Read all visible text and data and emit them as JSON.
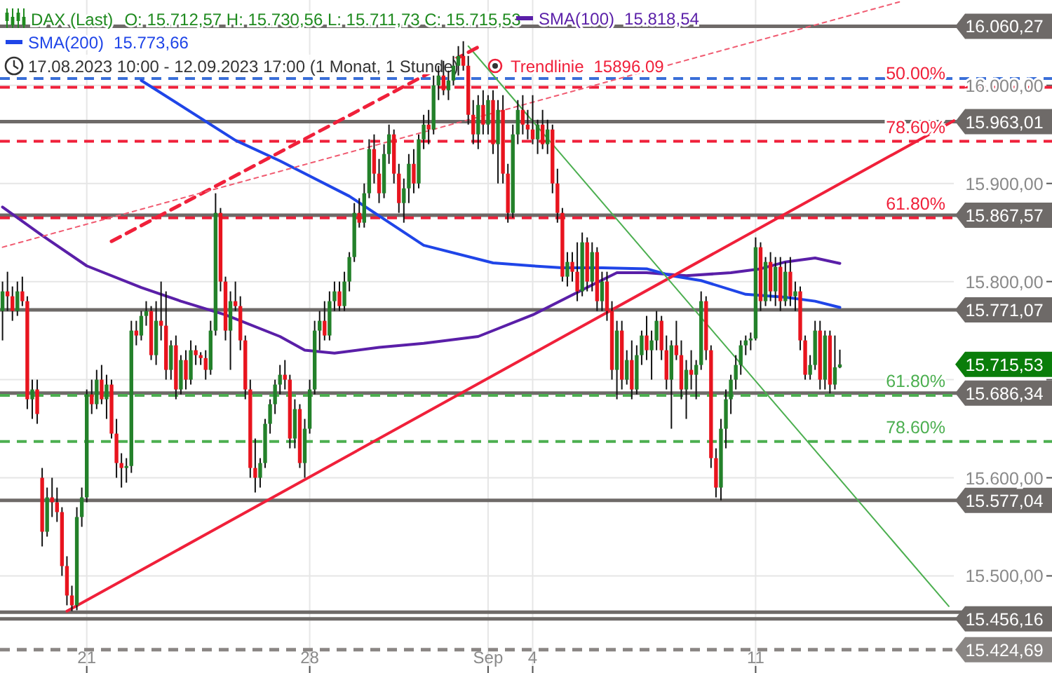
{
  "chart_data": {
    "type": "candlestick",
    "title": "DAX (Last)",
    "subtitle": "17.08.2023 10:00 - 12.09.2023 17:00  (1 Monat, 1 Stunde)",
    "categories": [
      null,
      null,
      null,
      null,
      null,
      null,
      null,
      null,
      null,
      null,
      null,
      null,
      null,
      null,
      null,
      null,
      null,
      "21",
      null,
      null,
      null,
      null,
      null,
      null,
      null,
      null,
      null,
      null,
      null,
      null,
      null,
      null,
      null,
      null,
      null,
      null,
      null,
      null,
      null,
      null,
      null,
      null,
      null,
      null,
      null,
      null,
      null,
      null,
      null,
      null,
      null,
      null,
      null,
      null,
      null,
      null,
      null,
      null,
      null,
      null,
      null,
      null,
      "28",
      null,
      null,
      null,
      null,
      null,
      null,
      null,
      null,
      null,
      null,
      null,
      null,
      null,
      null,
      null,
      null,
      null,
      null,
      null,
      null,
      null,
      null,
      null,
      null,
      null,
      null,
      null,
      null,
      null,
      null,
      null,
      null,
      null,
      null,
      null,
      "Sep",
      null,
      null,
      null,
      null,
      null,
      null,
      null,
      null,
      "4",
      null,
      null,
      null,
      null,
      null,
      null,
      null,
      null,
      null,
      null,
      null,
      null,
      null,
      null,
      null,
      null,
      null,
      null,
      null,
      null,
      null,
      null,
      null,
      null,
      null,
      null,
      null,
      null,
      null,
      null,
      null,
      null,
      null,
      null,
      null,
      null,
      null,
      null,
      null,
      null,
      null,
      null,
      null,
      null,
      "11",
      null,
      null,
      null,
      null,
      null,
      null,
      null,
      null,
      null,
      null,
      null,
      null,
      null,
      null,
      null,
      null,
      null,
      null,
      null,
      null,
      null,
      null,
      null,
      null,
      null,
      null,
      null,
      null,
      null,
      null,
      null,
      null,
      null,
      null,
      null,
      null,
      null,
      null,
      null,
      null
    ],
    "ohlc": [
      [
        15770,
        15800,
        15740,
        15790
      ],
      [
        15790,
        15810,
        15770,
        15785
      ],
      [
        15785,
        15795,
        15760,
        15770
      ],
      [
        15770,
        15800,
        15765,
        15790
      ],
      [
        15790,
        15805,
        15775,
        15780
      ],
      [
        15780,
        15785,
        15670,
        15680
      ],
      [
        15680,
        15700,
        15660,
        15690
      ],
      [
        15690,
        15700,
        15655,
        15665
      ],
      [
        15600,
        15610,
        15530,
        15545
      ],
      [
        15545,
        15590,
        15540,
        15580
      ],
      [
        15580,
        15600,
        15560,
        15575
      ],
      [
        15575,
        15590,
        15555,
        15565
      ],
      [
        15565,
        15570,
        15500,
        15510
      ],
      [
        15510,
        15520,
        15470,
        15480
      ],
      [
        15480,
        15490,
        15464,
        15470
      ],
      [
        15470,
        15570,
        15465,
        15560
      ],
      [
        15560,
        15590,
        15550,
        15580
      ],
      [
        15580,
        15690,
        15575,
        15685
      ],
      [
        15685,
        15700,
        15665,
        15675
      ],
      [
        15675,
        15710,
        15670,
        15700
      ],
      [
        15700,
        15715,
        15675,
        15680
      ],
      [
        15680,
        15705,
        15660,
        15695
      ],
      [
        15695,
        15700,
        15640,
        15645
      ],
      [
        15645,
        15660,
        15600,
        15615
      ],
      [
        15615,
        15625,
        15590,
        15610
      ],
      [
        15610,
        15620,
        15595,
        15612
      ],
      [
        15612,
        15760,
        15605,
        15750
      ],
      [
        15750,
        15760,
        15735,
        15745
      ],
      [
        15745,
        15770,
        15740,
        15765
      ],
      [
        15765,
        15780,
        15755,
        15770
      ],
      [
        15770,
        15775,
        15720,
        15725
      ],
      [
        15725,
        15780,
        15715,
        15760
      ],
      [
        15760,
        15800,
        15740,
        15755
      ],
      [
        15755,
        15790,
        15700,
        15710
      ],
      [
        15710,
        15740,
        15700,
        15735
      ],
      [
        15735,
        15745,
        15680,
        15690
      ],
      [
        15690,
        15725,
        15685,
        15720
      ],
      [
        15720,
        15730,
        15690,
        15700
      ],
      [
        15700,
        15740,
        15695,
        15730
      ],
      [
        15730,
        15735,
        15715,
        15725
      ],
      [
        15725,
        15728,
        15715,
        15722
      ],
      [
        15722,
        15730,
        15700,
        15710
      ],
      [
        15710,
        15760,
        15705,
        15750
      ],
      [
        15750,
        15890,
        15745,
        15870
      ],
      [
        15870,
        15875,
        15790,
        15800
      ],
      [
        15800,
        15805,
        15740,
        15750
      ],
      [
        15750,
        15790,
        15710,
        15780
      ],
      [
        15780,
        15800,
        15770,
        15775
      ],
      [
        15775,
        15785,
        15730,
        15740
      ],
      [
        15740,
        15745,
        15680,
        15690
      ],
      [
        15690,
        15700,
        15600,
        15610
      ],
      [
        15610,
        15640,
        15585,
        15600
      ],
      [
        15600,
        15620,
        15590,
        15615
      ],
      [
        15615,
        15660,
        15610,
        15655
      ],
      [
        15655,
        15680,
        15645,
        15675
      ],
      [
        15675,
        15700,
        15665,
        15695
      ],
      [
        15695,
        15715,
        15685,
        15705
      ],
      [
        15705,
        15720,
        15690,
        15700
      ],
      [
        15700,
        15705,
        15630,
        15640
      ],
      [
        15640,
        15680,
        15630,
        15670
      ],
      [
        15670,
        15675,
        15610,
        15615
      ],
      [
        15615,
        15660,
        15600,
        15650
      ],
      [
        15650,
        15700,
        15645,
        15690
      ],
      [
        15690,
        15760,
        15685,
        15750
      ],
      [
        15750,
        15770,
        15730,
        15760
      ],
      [
        15760,
        15780,
        15740,
        15745
      ],
      [
        15745,
        15790,
        15740,
        15780
      ],
      [
        15780,
        15800,
        15770,
        15790
      ],
      [
        15790,
        15800,
        15770,
        15775
      ],
      [
        15775,
        15810,
        15770,
        15800
      ],
      [
        15800,
        15830,
        15790,
        15825
      ],
      [
        15825,
        15880,
        15820,
        15870
      ],
      [
        15870,
        15885,
        15855,
        15860
      ],
      [
        15860,
        15900,
        15855,
        15890
      ],
      [
        15890,
        15945,
        15885,
        15935
      ],
      [
        15935,
        15950,
        15900,
        15910
      ],
      [
        15910,
        15925,
        15880,
        15890
      ],
      [
        15890,
        15940,
        15885,
        15930
      ],
      [
        15930,
        15960,
        15920,
        15950
      ],
      [
        15950,
        15955,
        15900,
        15910
      ],
      [
        15910,
        15920,
        15870,
        15880
      ],
      [
        15880,
        15905,
        15860,
        15895
      ],
      [
        15895,
        15930,
        15880,
        15920
      ],
      [
        15920,
        15935,
        15890,
        15900
      ],
      [
        15900,
        15950,
        15895,
        15945
      ],
      [
        15945,
        15970,
        15935,
        15960
      ],
      [
        15960,
        15975,
        15940,
        15955
      ],
      [
        15955,
        16010,
        15950,
        16000
      ],
      [
        16000,
        16020,
        15985,
        16010
      ],
      [
        16010,
        16025,
        15990,
        15995
      ],
      [
        15995,
        16015,
        15985,
        16005
      ],
      [
        16005,
        16030,
        16000,
        16020
      ],
      [
        16020,
        16040,
        16010,
        16030
      ],
      [
        16030,
        16045,
        16015,
        16020
      ],
      [
        16020,
        16030,
        15960,
        15970
      ],
      [
        15970,
        15985,
        15940,
        15950
      ],
      [
        15950,
        15990,
        15935,
        15980
      ],
      [
        15980,
        15995,
        15950,
        15960
      ],
      [
        15960,
        15990,
        15950,
        15985
      ],
      [
        15985,
        15995,
        15930,
        15940
      ],
      [
        15940,
        15985,
        15900,
        15975
      ],
      [
        15975,
        15990,
        15900,
        15910
      ],
      [
        15910,
        15920,
        15860,
        15870
      ],
      [
        15870,
        15960,
        15865,
        15950
      ],
      [
        15950,
        15985,
        15940,
        15975
      ],
      [
        15975,
        15990,
        15950,
        15960
      ],
      [
        15960,
        15975,
        15945,
        15955
      ],
      [
        15955,
        15990,
        15940,
        15945
      ],
      [
        15945,
        15965,
        15930,
        15960
      ],
      [
        15960,
        15975,
        15935,
        15940
      ],
      [
        15940,
        15965,
        15930,
        15955
      ],
      [
        15955,
        15960,
        15890,
        15900
      ],
      [
        15900,
        15915,
        15860,
        15870
      ],
      [
        15870,
        15875,
        15800,
        15805
      ],
      [
        15805,
        15830,
        15795,
        15820
      ],
      [
        15820,
        15830,
        15800,
        15810
      ],
      [
        15810,
        15840,
        15780,
        15790
      ],
      [
        15790,
        15850,
        15785,
        15840
      ],
      [
        15840,
        15845,
        15790,
        15800
      ],
      [
        15800,
        15840,
        15790,
        15830
      ],
      [
        15830,
        15835,
        15770,
        15780
      ],
      [
        15780,
        15810,
        15770,
        15800
      ],
      [
        15800,
        15810,
        15760,
        15770
      ],
      [
        15770,
        15780,
        15700,
        15710
      ],
      [
        15710,
        15760,
        15680,
        15750
      ],
      [
        15750,
        15760,
        15690,
        15700
      ],
      [
        15700,
        15730,
        15695,
        15720
      ],
      [
        15720,
        15740,
        15680,
        15690
      ],
      [
        15690,
        15735,
        15685,
        15725
      ],
      [
        15725,
        15750,
        15715,
        15745
      ],
      [
        15745,
        15765,
        15720,
        15730
      ],
      [
        15730,
        15750,
        15700,
        15740
      ],
      [
        15740,
        15770,
        15730,
        15760
      ],
      [
        15760,
        15765,
        15720,
        15730
      ],
      [
        15730,
        15745,
        15690,
        15700
      ],
      [
        15700,
        15740,
        15650,
        15735
      ],
      [
        15735,
        15760,
        15720,
        15725
      ],
      [
        15725,
        15740,
        15680,
        15690
      ],
      [
        15690,
        15720,
        15660,
        15710
      ],
      [
        15710,
        15730,
        15690,
        15705
      ],
      [
        15705,
        15720,
        15680,
        15715
      ],
      [
        15715,
        15790,
        15710,
        15780
      ],
      [
        15780,
        15785,
        15720,
        15730
      ],
      [
        15730,
        15735,
        15610,
        15620
      ],
      [
        15620,
        15630,
        15580,
        15590
      ],
      [
        15590,
        15660,
        15577,
        15650
      ],
      [
        15650,
        15690,
        15630,
        15680
      ],
      [
        15680,
        15705,
        15665,
        15700
      ],
      [
        15700,
        15725,
        15690,
        15715
      ],
      [
        15715,
        15740,
        15705,
        15735
      ],
      [
        15735,
        15745,
        15725,
        15740
      ],
      [
        15740,
        15748,
        15730,
        15742
      ],
      [
        15742,
        15845,
        15740,
        15835
      ],
      [
        15835,
        15840,
        15770,
        15780
      ],
      [
        15780,
        15825,
        15775,
        15820
      ],
      [
        15820,
        15830,
        15780,
        15790
      ],
      [
        15790,
        15825,
        15775,
        15815
      ],
      [
        15815,
        15825,
        15770,
        15780
      ],
      [
        15780,
        15820,
        15775,
        15810
      ],
      [
        15810,
        15825,
        15775,
        15785
      ],
      [
        15785,
        15800,
        15770,
        15790
      ],
      [
        15790,
        15795,
        15730,
        15740
      ],
      [
        15740,
        15745,
        15700,
        15705
      ],
      [
        15705,
        15725,
        15700,
        15715
      ],
      [
        15715,
        15760,
        15710,
        15750
      ],
      [
        15750,
        15760,
        15690,
        15700
      ],
      [
        15700,
        15750,
        15690,
        15745
      ],
      [
        15745,
        15750,
        15686,
        15695
      ],
      [
        15695,
        15745,
        15690,
        15712.57
      ],
      [
        15712.57,
        15730.56,
        15711.73,
        15715.53
      ],
      null,
      null,
      null,
      null,
      null,
      null,
      null,
      null,
      null,
      null,
      null,
      null,
      null,
      null,
      null,
      null,
      null,
      null,
      null,
      null,
      null,
      null,
      null
    ],
    "series": [
      {
        "name": "SMA(100)",
        "type": "line",
        "color": "#5a1fa8",
        "values": [
          15876,
          null,
          null,
          null,
          null,
          null,
          null,
          null,
          15847,
          null,
          null,
          null,
          null,
          null,
          null,
          null,
          null,
          15816,
          null,
          null,
          null,
          null,
          null,
          null,
          null,
          null,
          null,
          null,
          15794,
          null,
          null,
          null,
          null,
          null,
          null,
          null,
          15780,
          null,
          null,
          null,
          null,
          null,
          null,
          null,
          null,
          15766,
          null,
          null,
          null,
          null,
          null,
          null,
          null,
          null,
          null,
          null,
          15744,
          null,
          null,
          null,
          null,
          15730,
          null,
          null,
          null,
          null,
          null,
          15727,
          null,
          null,
          null,
          null,
          null,
          null,
          null,
          null,
          15733,
          null,
          null,
          null,
          null,
          null,
          null,
          null,
          null,
          15737,
          null,
          null,
          null,
          null,
          null,
          null,
          null,
          null,
          null,
          null,
          15744,
          null,
          null,
          null,
          null,
          null,
          null,
          null,
          null,
          null,
          null,
          15766,
          null,
          null,
          null,
          null,
          null,
          null,
          null,
          null,
          null,
          null,
          15794,
          null,
          null,
          null,
          null,
          null,
          15809,
          null,
          null,
          null,
          null,
          null,
          15809,
          null,
          null,
          null,
          null,
          null,
          null,
          null,
          15806,
          null,
          null,
          null,
          null,
          null,
          null,
          null,
          null,
          15809,
          null,
          null,
          null,
          null,
          null,
          15813,
          null,
          null,
          null,
          null,
          15820,
          null,
          null,
          null,
          null,
          null,
          15824,
          null,
          null,
          null,
          null,
          15818.54,
          null,
          null,
          null,
          null,
          null,
          null,
          null,
          null,
          null,
          null,
          null,
          null,
          null,
          null,
          null,
          null,
          null,
          null,
          null,
          null,
          null,
          null,
          null
        ]
      },
      {
        "name": "SMA(200)",
        "type": "line",
        "color": "#1f45e8",
        "values": [
          null,
          null,
          null,
          null,
          null,
          null,
          null,
          null,
          null,
          null,
          null,
          null,
          null,
          null,
          null,
          null,
          null,
          null,
          null,
          null,
          null,
          null,
          null,
          null,
          null,
          null,
          null,
          null,
          16005,
          null,
          null,
          null,
          null,
          null,
          null,
          null,
          null,
          null,
          null,
          null,
          null,
          null,
          null,
          null,
          null,
          null,
          null,
          15944,
          null,
          null,
          null,
          null,
          null,
          null,
          null,
          null,
          15923,
          null,
          null,
          null,
          null,
          null,
          null,
          null,
          null,
          null,
          null,
          null,
          null,
          null,
          15887,
          null,
          null,
          null,
          null,
          null,
          null,
          null,
          null,
          null,
          null,
          null,
          null,
          null,
          null,
          15837,
          null,
          null,
          null,
          null,
          null,
          null,
          null,
          null,
          null,
          null,
          null,
          null,
          null,
          15819,
          null,
          null,
          null,
          null,
          null,
          null,
          null,
          15816,
          null,
          null,
          null,
          null,
          null,
          15814,
          null,
          null,
          null,
          null,
          null,
          null,
          null,
          15814,
          null,
          null,
          null,
          null,
          null,
          null,
          null,
          null,
          15813,
          null,
          null,
          null,
          null,
          15806,
          null,
          null,
          null,
          null,
          null,
          15801,
          null,
          null,
          null,
          null,
          null,
          null,
          null,
          null,
          15787,
          null,
          null,
          null,
          null,
          null,
          null,
          null,
          15784,
          null,
          null,
          null,
          null,
          null,
          15780,
          null,
          null,
          null,
          null,
          15773.66,
          null,
          null,
          null,
          null,
          null,
          null,
          null,
          null,
          null,
          null,
          null,
          null,
          null,
          null,
          null,
          null,
          null,
          null,
          null,
          null,
          null,
          null,
          null
        ]
      },
      {
        "name": "Trendlinie",
        "type": "line",
        "color": "#f0203a",
        "line_style": "solid",
        "values": [
          null,
          null,
          null,
          null,
          null,
          null,
          null,
          null,
          null,
          null,
          null,
          null,
          null,
          15464,
          null,
          null,
          null,
          null,
          null,
          null,
          null,
          null,
          null,
          null,
          null,
          null,
          null,
          null,
          null,
          null,
          null,
          null,
          null,
          null,
          null,
          null,
          null,
          null,
          null,
          null,
          null,
          null,
          null,
          null,
          null,
          null,
          null,
          null,
          null,
          null,
          null,
          null,
          null,
          null,
          null,
          null,
          null,
          null,
          null,
          null,
          null,
          null,
          null,
          null,
          null,
          null,
          null,
          null,
          null,
          null,
          null,
          null,
          null,
          null,
          null,
          null,
          null,
          null,
          null,
          null,
          null,
          null,
          null,
          null,
          null,
          null,
          null,
          null,
          null,
          null,
          null,
          null,
          null,
          null,
          null,
          null,
          null,
          null,
          null,
          null,
          null,
          null,
          null,
          null,
          null,
          null,
          null,
          null,
          null,
          null,
          null,
          null,
          null,
          null,
          null,
          null,
          null,
          null,
          null,
          null,
          null,
          null,
          null,
          null,
          null,
          null,
          null,
          null,
          null,
          null,
          null,
          null,
          null,
          null,
          null,
          null,
          null,
          null,
          null,
          null,
          null,
          null,
          null,
          null,
          null,
          null,
          null,
          null,
          null,
          null,
          null,
          null,
          null,
          null,
          null,
          null,
          null,
          null,
          null,
          null,
          null,
          null,
          null,
          null,
          null,
          null,
          null,
          null,
          null,
          null,
          null,
          null,
          null,
          null,
          null,
          null,
          null,
          null,
          null,
          null,
          null,
          null,
          null,
          null,
          null,
          null,
          null,
          null,
          null,
          null,
          null,
          null,
          15964
        ]
      },
      {
        "type": "line",
        "color": "#4caf50",
        "line_style": "solid",
        "values": [
          null,
          null,
          null,
          null,
          null,
          null,
          null,
          null,
          null,
          null,
          null,
          null,
          null,
          null,
          null,
          null,
          null,
          null,
          null,
          null,
          null,
          null,
          null,
          null,
          null,
          null,
          null,
          null,
          null,
          null,
          null,
          null,
          null,
          null,
          null,
          null,
          null,
          null,
          null,
          null,
          null,
          null,
          null,
          null,
          null,
          null,
          null,
          null,
          null,
          null,
          null,
          null,
          null,
          null,
          null,
          null,
          null,
          null,
          null,
          null,
          null,
          null,
          null,
          null,
          null,
          null,
          null,
          null,
          null,
          null,
          null,
          null,
          null,
          null,
          null,
          null,
          null,
          null,
          null,
          null,
          null,
          null,
          null,
          null,
          null,
          null,
          null,
          null,
          null,
          null,
          null,
          null,
          null,
          null,
          16040,
          null,
          null,
          null,
          null,
          null,
          null,
          null,
          null,
          null,
          null,
          null,
          null,
          null,
          null,
          null,
          null,
          null,
          null,
          null,
          null,
          null,
          null,
          null,
          null,
          null,
          null,
          null,
          null,
          null,
          null,
          null,
          null,
          null,
          null,
          null,
          null,
          null,
          null,
          null,
          null,
          null,
          null,
          null,
          null,
          null,
          null,
          null,
          null,
          null,
          null,
          null,
          null,
          null,
          null,
          null,
          null,
          null,
          null,
          null,
          null,
          null,
          null,
          null,
          null,
          null,
          null,
          null,
          null,
          null,
          null,
          null,
          null,
          null,
          null,
          null,
          null,
          null,
          null,
          null,
          null,
          null,
          null,
          null,
          null,
          null,
          null,
          null,
          null,
          null,
          null,
          null,
          null,
          null,
          null,
          null,
          null,
          15469,
          null
        ]
      },
      {
        "type": "line",
        "color": "#f0203a",
        "line_style": "dashed",
        "values": [
          null,
          null,
          null,
          null,
          null,
          null,
          null,
          null,
          null,
          null,
          null,
          null,
          null,
          null,
          null,
          null,
          null,
          null,
          null,
          null,
          null,
          null,
          15841,
          null,
          null,
          null,
          null,
          null,
          null,
          null,
          null,
          null,
          null,
          null,
          null,
          null,
          null,
          null,
          null,
          null,
          null,
          null,
          null,
          null,
          null,
          null,
          null,
          null,
          null,
          null,
          null,
          null,
          null,
          null,
          null,
          null,
          null,
          null,
          null,
          null,
          null,
          null,
          null,
          null,
          null,
          null,
          null,
          null,
          null,
          null,
          null,
          null,
          null,
          null,
          null,
          null,
          null,
          null,
          null,
          null,
          null,
          null,
          null,
          null,
          null,
          null,
          null,
          null,
          null,
          null,
          null,
          null,
          null,
          null,
          null,
          null,
          16039,
          null,
          null,
          null,
          null,
          null,
          null,
          null,
          null,
          null,
          null,
          null,
          null,
          null,
          null,
          null,
          null,
          null,
          null,
          null,
          null,
          null,
          null,
          null,
          null,
          null,
          null,
          null,
          null,
          null,
          null,
          null,
          null,
          null,
          null,
          null,
          null,
          null,
          null,
          null,
          null,
          null,
          null,
          null,
          null,
          null,
          null,
          null,
          null,
          null,
          null,
          null,
          null,
          null,
          null,
          null,
          null,
          null,
          null,
          null,
          null,
          null,
          null,
          null,
          null,
          null,
          null,
          null,
          null,
          null,
          null,
          null,
          null,
          null,
          null,
          null,
          null,
          null,
          null,
          null,
          null,
          null,
          null,
          null,
          null,
          null,
          null,
          null,
          null,
          null,
          null,
          null,
          null,
          null,
          null,
          null,
          null
        ]
      },
      {
        "type": "line",
        "color": "#f05a70",
        "line_style": "dotted",
        "values": [
          15835,
          null,
          null,
          null,
          null,
          null,
          null,
          null,
          null,
          null,
          null,
          null,
          null,
          null,
          null,
          null,
          null,
          null,
          null,
          null,
          null,
          null,
          null,
          null,
          null,
          null,
          null,
          null,
          null,
          null,
          null,
          null,
          null,
          null,
          null,
          null,
          null,
          null,
          null,
          null,
          null,
          null,
          null,
          null,
          null,
          null,
          null,
          null,
          null,
          null,
          null,
          null,
          null,
          null,
          null,
          null,
          null,
          null,
          null,
          null,
          null,
          null,
          null,
          null,
          null,
          null,
          null,
          null,
          null,
          null,
          null,
          null,
          null,
          null,
          null,
          null,
          null,
          null,
          null,
          null,
          null,
          null,
          null,
          null,
          null,
          null,
          null,
          null,
          null,
          null,
          null,
          null,
          null,
          null,
          null,
          null,
          null,
          null,
          null,
          null,
          null,
          null,
          null,
          null,
          null,
          null,
          null,
          null,
          null,
          null,
          null,
          null,
          null,
          null,
          null,
          null,
          null,
          null,
          null,
          null,
          null,
          null,
          null,
          null,
          null,
          null,
          null,
          null,
          null,
          null,
          null,
          null,
          null,
          null,
          null,
          null,
          null,
          null,
          null,
          null,
          null,
          null,
          null,
          null,
          null,
          null,
          null,
          null,
          null,
          null,
          null,
          null,
          null,
          null,
          null,
          null,
          null,
          null,
          null,
          null,
          null,
          null,
          null,
          null,
          null,
          null,
          null,
          null,
          null,
          null,
          null,
          null,
          null,
          null,
          null,
          null,
          null,
          null,
          null,
          null,
          null,
          16085,
          null,
          null,
          null,
          null,
          null,
          null,
          null,
          null,
          null,
          null,
          null
        ]
      }
    ],
    "ylim": [
      15401,
      16087
    ],
    "yticks": [
      {
        "value": 15500,
        "label": "15.500,00"
      },
      {
        "value": 15600,
        "label": "15.600,00"
      },
      {
        "value": 15700,
        "label": null
      },
      {
        "value": 15800,
        "label": "15.800,00"
      },
      {
        "value": 15900,
        "label": "15.900,00"
      },
      {
        "value": 16000,
        "label": "16.000,00"
      }
    ],
    "grid": true,
    "legend": "top",
    "ref_lines": [
      {
        "axis": "y",
        "value": 16060.27,
        "label": "16.060,27",
        "color": "#6e6a68",
        "line_style": "solid"
      },
      {
        "axis": "y",
        "value": 16007,
        "color": "#3a6fd8",
        "line_style": "dashed"
      },
      {
        "axis": "y",
        "value": 15998,
        "color": "#f0203a",
        "line_style": "dashed"
      },
      {
        "axis": "y",
        "value": 15963.01,
        "label": "15.963,01",
        "color": "#6e6a68",
        "line_style": "solid"
      },
      {
        "axis": "y",
        "value": 15943,
        "color": "#f0203a",
        "line_style": "dashed"
      },
      {
        "axis": "y",
        "value": 15867.57,
        "label": "15.867,57",
        "color": "#6e6a68",
        "line_style": "solid"
      },
      {
        "axis": "y",
        "value": 15865,
        "color": "#f0203a",
        "line_style": "dashed"
      },
      {
        "axis": "y",
        "value": 15771.07,
        "label": "15.771,07",
        "color": "#6e6a68",
        "line_style": "solid"
      },
      {
        "axis": "y",
        "value": 15686.34,
        "label": "15.686,34",
        "color": "#6e6a68",
        "line_style": "solid"
      },
      {
        "axis": "y",
        "value": 15684,
        "color": "#4caf50",
        "line_style": "dashed"
      },
      {
        "axis": "y",
        "value": 15637,
        "color": "#4caf50",
        "line_style": "dashed"
      },
      {
        "axis": "y",
        "value": 15577.04,
        "label": "15.577,04",
        "color": "#6e6a68",
        "line_style": "solid"
      },
      {
        "axis": "y",
        "value": 15463,
        "color": "#6e6a68",
        "line_style": "solid"
      },
      {
        "axis": "y",
        "value": 15456.16,
        "label": "15.456,16",
        "color": "#6e6a68",
        "line_style": "solid"
      },
      {
        "axis": "y",
        "value": 15424.69,
        "label": "15.424,69",
        "color": "#8a8684",
        "line_style": "dashed"
      }
    ],
    "annotations": [
      "O: 15.712,57  H: 15.730,56  L: 15.711,73  C: 15.715,53",
      "15.818,54",
      "15.773,66",
      "15896.09",
      "15.715,53",
      {
        "text": "50.00%",
        "y": 15998
      },
      {
        "text": "78.60%",
        "y": 15943
      },
      {
        "text": "61.80%",
        "y": 15865
      },
      {
        "text": "61.80%",
        "y": 15684
      },
      {
        "text": "78.60%",
        "y": 15637
      }
    ]
  }
}
